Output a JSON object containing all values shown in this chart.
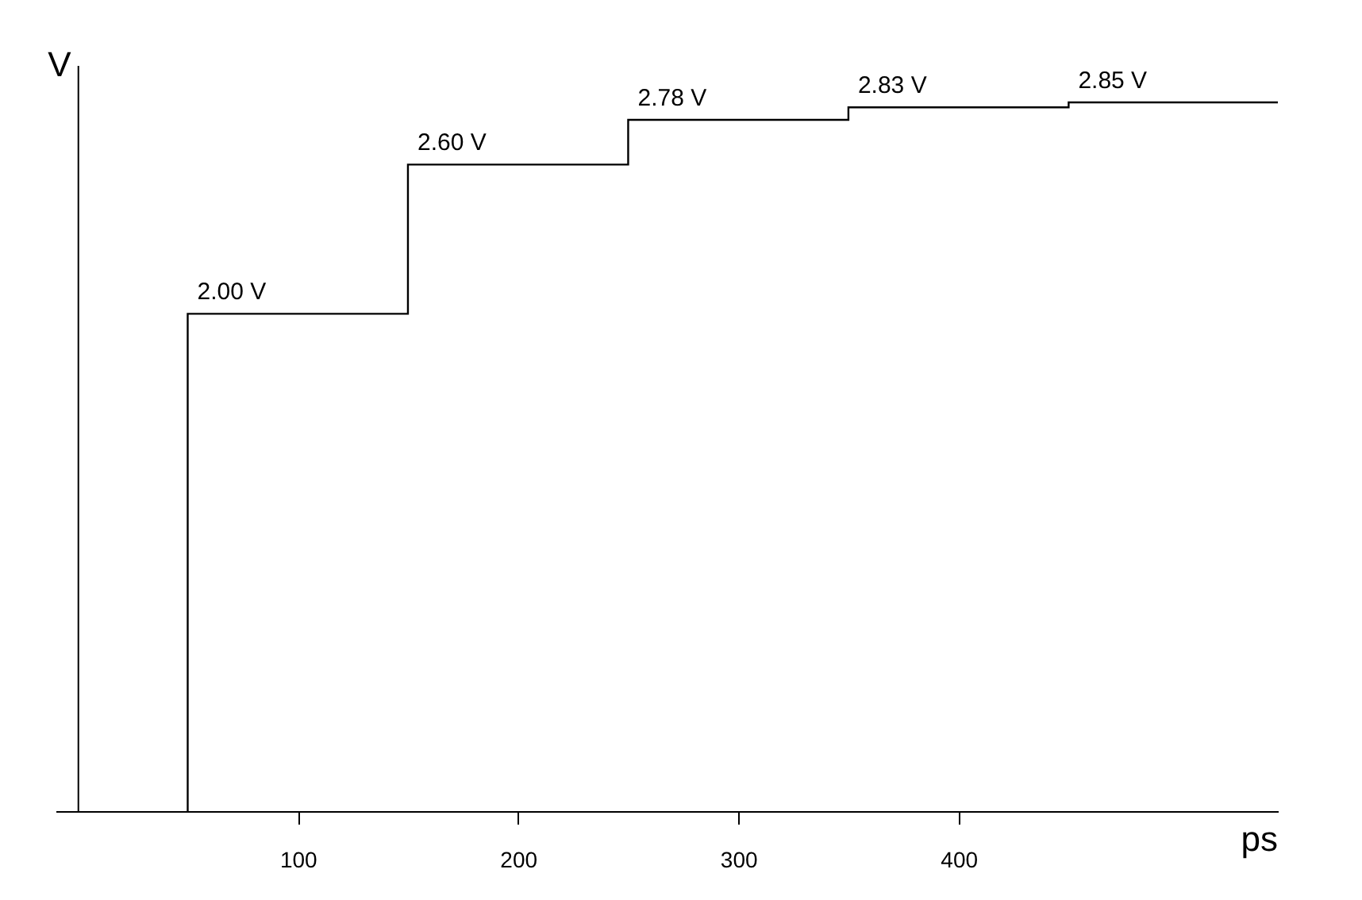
{
  "chart_data": {
    "type": "step",
    "xlabel": "ps",
    "ylabel": "V",
    "x": [
      50,
      150,
      250,
      350,
      450,
      545
    ],
    "values": [
      2.0,
      2.6,
      2.78,
      2.83,
      2.85,
      2.85
    ],
    "value_labels": [
      "2.00 V",
      "2.60 V",
      "2.78 V",
      "2.83 V",
      "2.85 V",
      null
    ],
    "color": "#000000",
    "xlim": [
      -10,
      545
    ],
    "xticks": [
      100,
      200,
      300,
      400
    ],
    "tick_labels": "x",
    "grid": false
  }
}
